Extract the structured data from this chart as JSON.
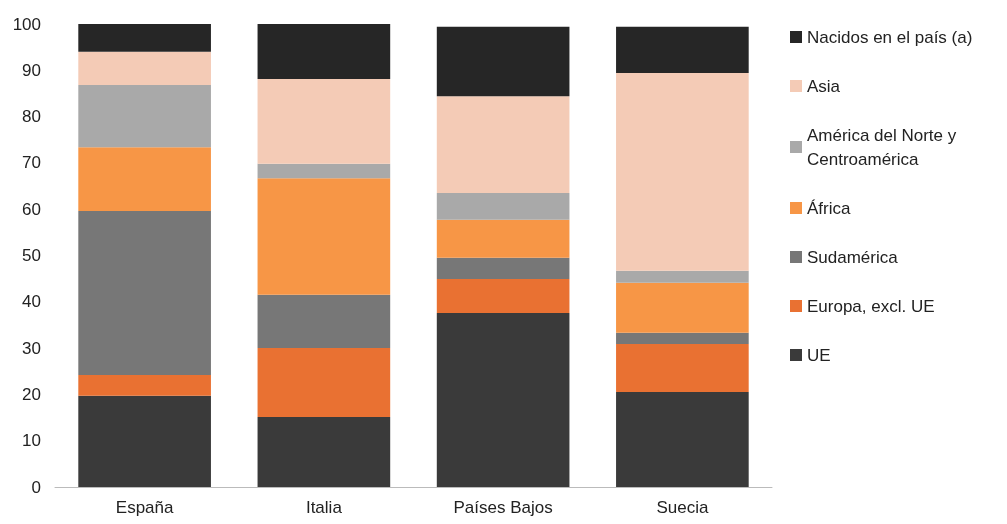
{
  "chart_data": {
    "type": "bar",
    "stacked": true,
    "categories": [
      "España",
      "Italia",
      "Países Bajos",
      "Suecia"
    ],
    "ylim": [
      0,
      100
    ],
    "yticks": [
      0,
      10,
      20,
      30,
      40,
      50,
      60,
      70,
      80,
      90,
      100
    ],
    "grid": false,
    "legend": "right",
    "series": [
      {
        "name": "UE",
        "color": "#3a3a3a",
        "values": [
          19.7,
          15.1,
          37.6,
          20.5
        ]
      },
      {
        "name": "Europa, excl. UE",
        "color": "#e97132",
        "values": [
          4.5,
          14.9,
          7.3,
          10.4
        ]
      },
      {
        "name": "Sudamérica",
        "color": "#777777",
        "values": [
          35.4,
          11.5,
          4.6,
          2.4
        ]
      },
      {
        "name": "África",
        "color": "#f79646",
        "values": [
          13.8,
          25.2,
          8.2,
          10.8
        ]
      },
      {
        "name": "América del Norte y Centroamérica",
        "color": "#a9a9a9",
        "values": [
          13.4,
          3.1,
          5.8,
          2.6
        ]
      },
      {
        "name": "Asia",
        "color": "#f4cbb6",
        "values": [
          7.2,
          18.3,
          20.9,
          42.7
        ]
      },
      {
        "name": "Nacidos en el país (a)",
        "color": "#262626",
        "values": [
          6.0,
          11.9,
          15.0,
          10.0
        ]
      }
    ]
  }
}
